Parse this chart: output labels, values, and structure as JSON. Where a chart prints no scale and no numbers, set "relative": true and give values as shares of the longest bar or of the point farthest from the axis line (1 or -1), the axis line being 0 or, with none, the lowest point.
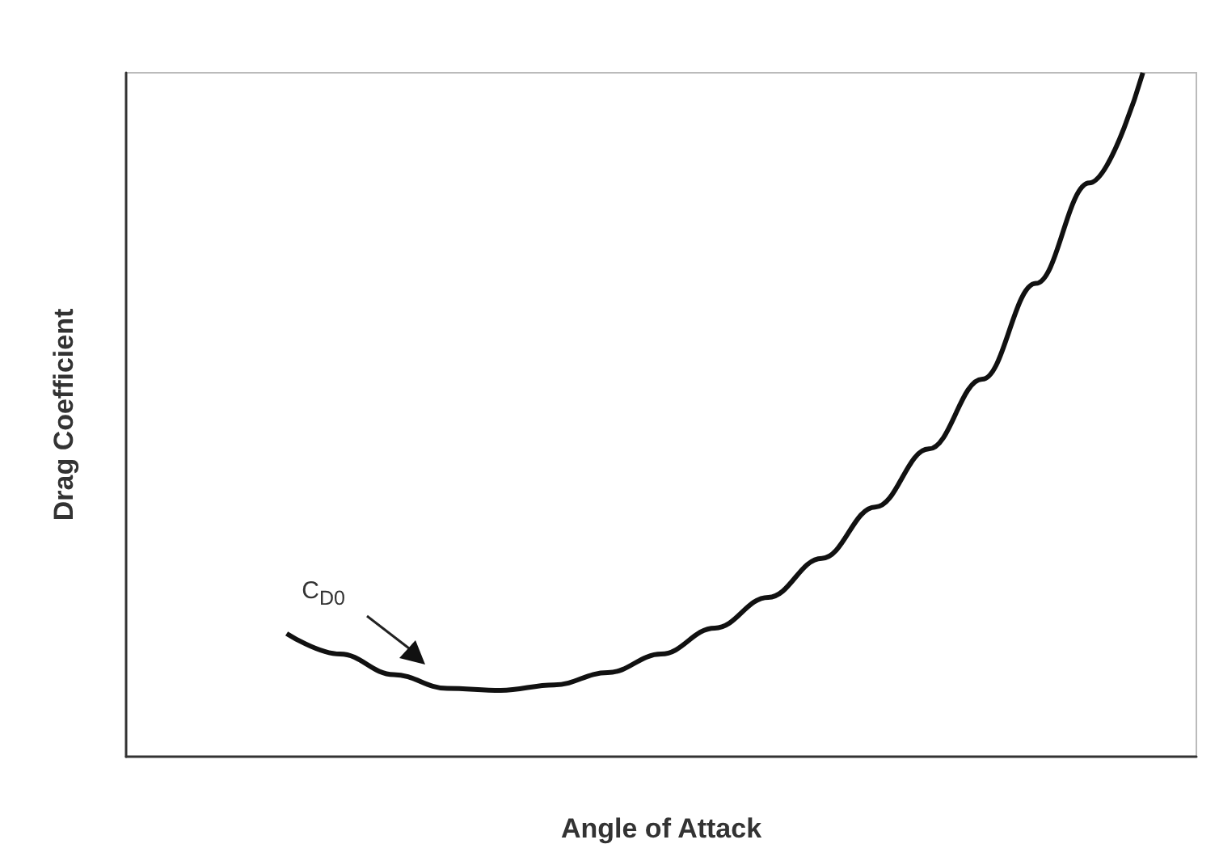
{
  "chart_data": {
    "type": "line",
    "relative": true,
    "xlabel": "Angle of Attack",
    "ylabel": "Drag Coefficient",
    "categories": [
      null,
      null,
      null,
      null,
      null,
      null,
      null,
      null,
      null,
      null,
      null,
      null,
      null,
      null,
      null,
      null,
      null,
      null,
      null,
      null,
      null
    ],
    "series": [
      {
        "color": "#111111",
        "values": [
          null,
          null,
          null,
          0.18,
          0.15,
          0.12,
          0.1,
          0.097,
          0.105,
          0.123,
          0.15,
          0.188,
          0.233,
          0.29,
          0.365,
          0.45,
          0.552,
          0.692,
          0.839,
          1,
          null
        ]
      }
    ],
    "annotations": [
      "C$_{D0}$"
    ],
    "grid": false,
    "marker": "none",
    "line_style": "solid"
  }
}
